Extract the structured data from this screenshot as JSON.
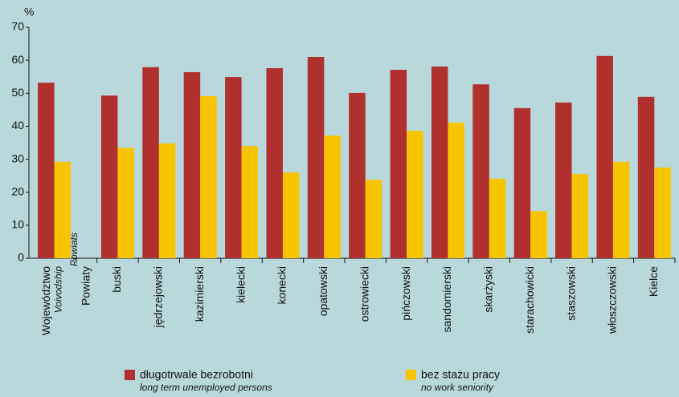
{
  "chart_data": {
    "type": "bar",
    "ylabel": "%",
    "categories": [
      "Województwo",
      "Powiaty",
      "buski",
      "jędrzejowski",
      "kazimierski",
      "kielecki",
      "konecki",
      "opatowski",
      "ostrowiecki",
      "pińczowski",
      "sandomierski",
      "skarżyski",
      "starachowicki",
      "staszowski",
      "włoszczowski",
      "Kielce"
    ],
    "category_subtitles": [
      "Voivodship",
      "Powiats",
      null,
      null,
      null,
      null,
      null,
      null,
      null,
      null,
      null,
      null,
      null,
      null,
      null,
      null
    ],
    "series": [
      {
        "name": "długotrwale bezrobotni",
        "name_en": "long term unemployed persons",
        "color": "#b0302e",
        "values": [
          53.2,
          null,
          49.3,
          57.9,
          56.4,
          54.9,
          57.6,
          61.0,
          50.1,
          57.1,
          58.1,
          52.7,
          45.5,
          47.2,
          61.3,
          48.9
        ]
      },
      {
        "name": "bez stażu pracy",
        "name_en": "no work seniority",
        "color": "#f7c400",
        "values": [
          29.2,
          null,
          33.5,
          34.8,
          49.1,
          34.0,
          26.0,
          37.2,
          23.8,
          38.6,
          41.1,
          24.1,
          14.3,
          25.5,
          29.2,
          27.5
        ]
      }
    ],
    "ylim": [
      0,
      70
    ],
    "yticks": [
      0,
      10,
      20,
      30,
      40,
      50,
      60,
      70
    ]
  }
}
